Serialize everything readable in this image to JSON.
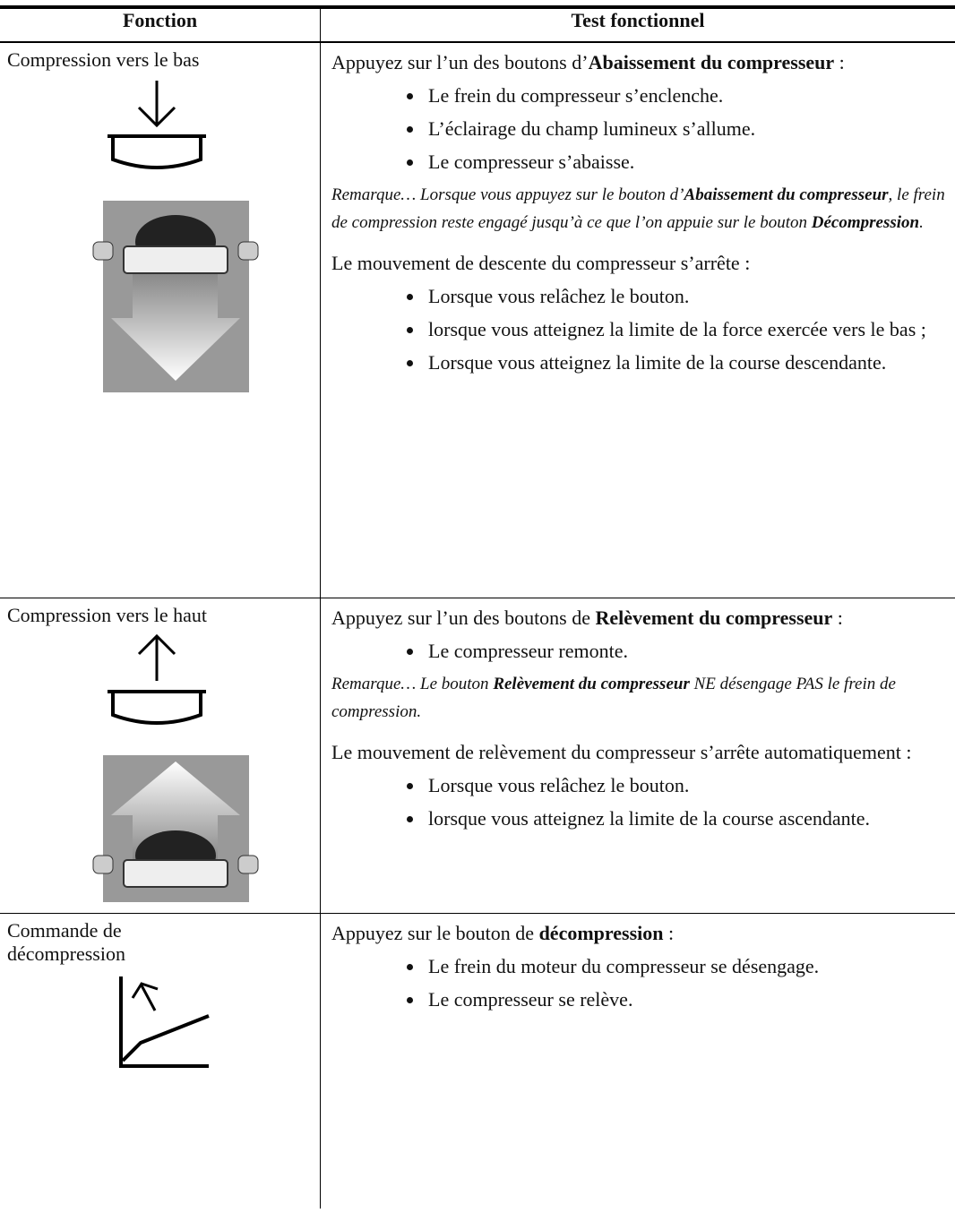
{
  "table": {
    "header": [
      "Fonction",
      "Test fonctionnel"
    ],
    "rows": [
      {
        "function": "Compression vers le bas",
        "intro": [
          "Appuyez sur l’un des boutons d’",
          "Abaissement du compresseur",
          " :"
        ],
        "bullets": [
          "Le frein du compresseur s’enclenche.",
          "L’éclairage du champ lumineux s’allume.",
          "Le compresseur s’abaisse."
        ],
        "note": [
          "Remarque… Lorsque vous appuyez sur le bouton d’",
          "Abaissement du compresseur",
          ", le frein de compression reste engagé jusqu’à ce que l’on appuie sur le bouton ",
          "Décompression",
          "."
        ],
        "stop": "Le mouvement de descente du compresseur s’arrête :",
        "stop_bullets": [
          "Lorsque vous relâchez le bouton.",
          "lorsque vous atteignez la limite de la force exercée vers le bas ;",
          "Lorsque vous atteignez la limite de la course descendante."
        ]
      },
      {
        "function": "Compression vers le haut",
        "intro": [
          "Appuyez sur l’un des boutons de ",
          "Relèvement du compresseur",
          " :"
        ],
        "bullets": [
          "Le compresseur remonte."
        ],
        "note": [
          "Remarque… Le bouton ",
          "Relèvement du compresseur",
          " NE désengage PAS le frein de compression."
        ],
        "stop": "Le mouvement de relèvement du compresseur s’arrête automatiquement :",
        "stop_bullets": [
          "Lorsque vous relâchez le bouton.",
          "lorsque vous atteignez la limite de la course ascendante."
        ]
      },
      {
        "function": "Commande de décompression",
        "intro": [
          "Appuyez sur le bouton de ",
          "décompression",
          " :"
        ],
        "bullets": [
          "Le frein du moteur du compresseur se désengage.",
          "Le compresseur se relève."
        ]
      }
    ]
  }
}
